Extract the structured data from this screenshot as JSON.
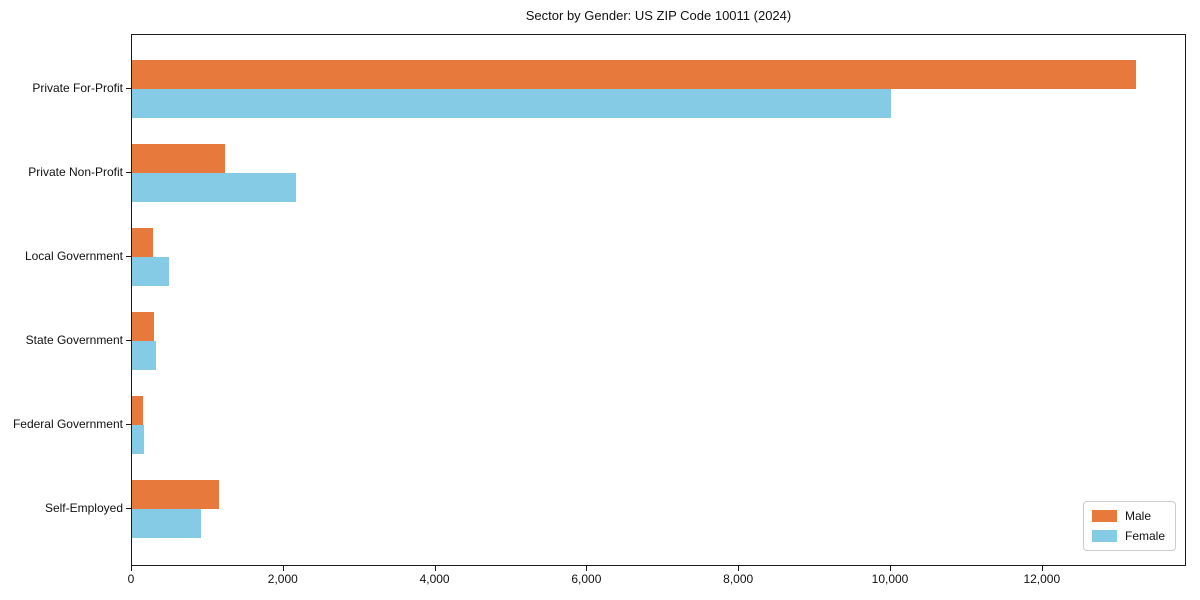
{
  "title": "Sector by Gender: US ZIP Code 10011 (2024)",
  "chart_data": {
    "type": "bar",
    "orientation": "horizontal",
    "title": "Sector by Gender: US ZIP Code 10011 (2024)",
    "categories": [
      "Private For-Profit",
      "Private Non-Profit",
      "Local Government",
      "State Government",
      "Federal Government",
      "Self-Employed"
    ],
    "series": [
      {
        "name": "Male",
        "color": "#e8793c",
        "values": [
          13230,
          1220,
          270,
          290,
          145,
          1150
        ]
      },
      {
        "name": "Female",
        "color": "#85cbe5",
        "values": [
          10000,
          2160,
          490,
          310,
          155,
          910
        ]
      }
    ],
    "xlabel": "",
    "ylabel": "",
    "xlim": [
      0,
      13900
    ],
    "xticks": [
      0,
      2000,
      4000,
      6000,
      8000,
      10000,
      12000
    ],
    "xtick_labels": [
      "0",
      "2,000",
      "4,000",
      "6,000",
      "8,000",
      "10,000",
      "12,000"
    ],
    "grid": false,
    "legend": {
      "position": "lower right",
      "entries": [
        {
          "label": "Male",
          "color": "#e8793c"
        },
        {
          "label": "Female",
          "color": "#85cbe5"
        }
      ]
    }
  }
}
